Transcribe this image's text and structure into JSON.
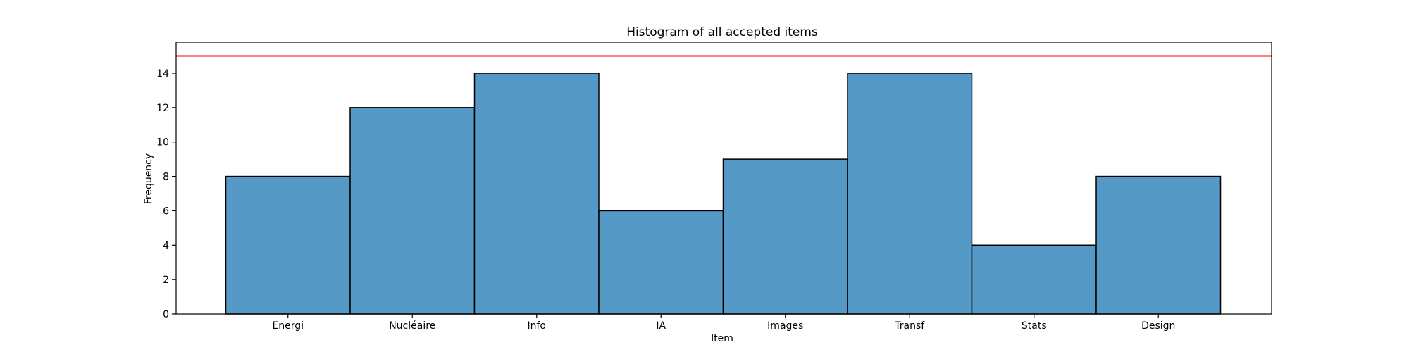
{
  "chart_data": {
    "type": "bar",
    "title": "Histogram of all accepted items",
    "xlabel": "Item",
    "ylabel": "Frequency",
    "categories": [
      "Energi",
      "Nucléaire",
      "Info",
      "IA",
      "Images",
      "Transf",
      "Stats",
      "Design"
    ],
    "values": [
      8,
      12,
      14,
      6,
      9,
      14,
      4,
      8
    ],
    "ylim": [
      0,
      15.8
    ],
    "yticks": [
      "0",
      "2",
      "4",
      "6",
      "8",
      "10",
      "12",
      "14"
    ],
    "threshold_line": 15,
    "grid": false,
    "legend": "none",
    "colors": {
      "bar_fill": "#5599c7",
      "bar_edge": "#000000",
      "threshold": "#ff0000"
    }
  }
}
